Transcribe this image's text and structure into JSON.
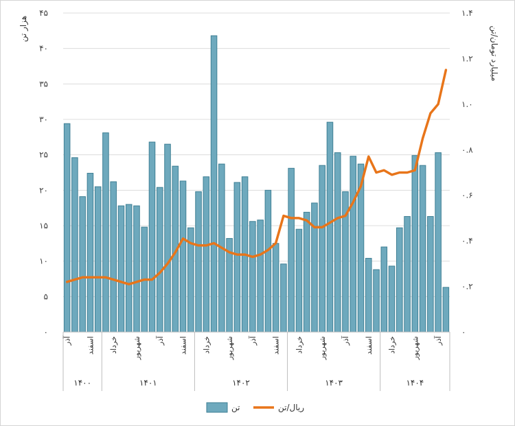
{
  "chart_data": {
    "type": "bar-line-combo",
    "left_axis": {
      "title": "هزار تن",
      "ylim": [
        0,
        45
      ],
      "ticks": [
        "۰",
        "۵",
        "۱۰",
        "۱۵",
        "۲۰",
        "۲۵",
        "۳۰",
        "۳۵",
        "۴۰",
        "۴۵"
      ],
      "tick_values": [
        0,
        5,
        10,
        15,
        20,
        25,
        30,
        35,
        40,
        45
      ]
    },
    "right_axis": {
      "title": "میلیارد تومان/تن",
      "ylim": [
        0,
        1.4
      ],
      "ticks": [
        "۰",
        "۰.۲",
        "۰.۴",
        "۰.۶",
        "۰.۸",
        "۱.۰",
        "۱.۲",
        "۱.۴"
      ],
      "tick_values": [
        0,
        0.2,
        0.4,
        0.6,
        0.8,
        1.0,
        1.2,
        1.4
      ]
    },
    "series": [
      {
        "name": "تن",
        "type": "bar",
        "axis": "left",
        "color": "#6ea9bd",
        "stroke": "#3e7f94",
        "values": [
          29.4,
          24.6,
          19.1,
          22.4,
          20.5,
          28.1,
          21.2,
          17.8,
          18.0,
          17.8,
          14.8,
          26.8,
          20.4,
          26.5,
          23.4,
          21.3,
          14.7,
          19.8,
          21.9,
          41.8,
          23.7,
          13.2,
          21.1,
          21.9,
          15.6,
          15.8,
          20.0,
          12.5,
          9.6,
          23.1,
          14.5,
          16.9,
          18.2,
          23.5,
          29.6,
          25.3,
          19.8,
          24.8,
          23.7,
          10.4,
          8.8,
          12.0,
          9.3,
          14.7,
          16.3,
          24.9,
          23.5,
          16.3,
          25.3,
          6.3
        ]
      },
      {
        "name": "ریال/تن",
        "type": "line",
        "axis": "right",
        "color": "#e8751a",
        "values": [
          0.22,
          0.23,
          0.24,
          0.24,
          0.24,
          0.24,
          0.23,
          0.22,
          0.21,
          0.22,
          0.23,
          0.23,
          0.26,
          0.3,
          0.35,
          0.41,
          0.39,
          0.38,
          0.38,
          0.39,
          0.37,
          0.35,
          0.34,
          0.34,
          0.33,
          0.34,
          0.36,
          0.39,
          0.51,
          0.5,
          0.5,
          0.49,
          0.46,
          0.46,
          0.48,
          0.5,
          0.51,
          0.57,
          0.64,
          0.77,
          0.7,
          0.71,
          0.69,
          0.7,
          0.7,
          0.71,
          0.85,
          0.96,
          1.0,
          1.15
        ]
      }
    ],
    "category_labels": [
      {
        "label": "آذر",
        "index": 0
      },
      {
        "label": "اسفند",
        "index": 3
      },
      {
        "label": "خرداد",
        "index": 6
      },
      {
        "label": "شهریور",
        "index": 9
      },
      {
        "label": "آذر",
        "index": 12
      },
      {
        "label": "اسفند",
        "index": 15
      },
      {
        "label": "خرداد",
        "index": 18
      },
      {
        "label": "شهریور",
        "index": 21
      },
      {
        "label": "آذر",
        "index": 24
      },
      {
        "label": "اسفند",
        "index": 27
      },
      {
        "label": "خرداد",
        "index": 30
      },
      {
        "label": "شهریور",
        "index": 33
      },
      {
        "label": "آذر",
        "index": 36
      },
      {
        "label": "اسفند",
        "index": 39
      },
      {
        "label": "خرداد",
        "index": 42
      },
      {
        "label": "شهریور",
        "index": 45
      },
      {
        "label": "آذر",
        "index": 48
      }
    ],
    "year_groups": [
      {
        "label": "۱۴۰۰",
        "start": 0,
        "end": 4
      },
      {
        "label": "۱۴۰۱",
        "start": 5,
        "end": 16
      },
      {
        "label": "۱۴۰۲",
        "start": 17,
        "end": 28
      },
      {
        "label": "۱۴۰۳",
        "start": 29,
        "end": 40
      },
      {
        "label": "۱۴۰۴",
        "start": 41,
        "end": 49
      }
    ],
    "grid": true,
    "legend_position": "bottom"
  },
  "legend": {
    "bar_label": "تن",
    "line_label": "ریال/تن"
  }
}
